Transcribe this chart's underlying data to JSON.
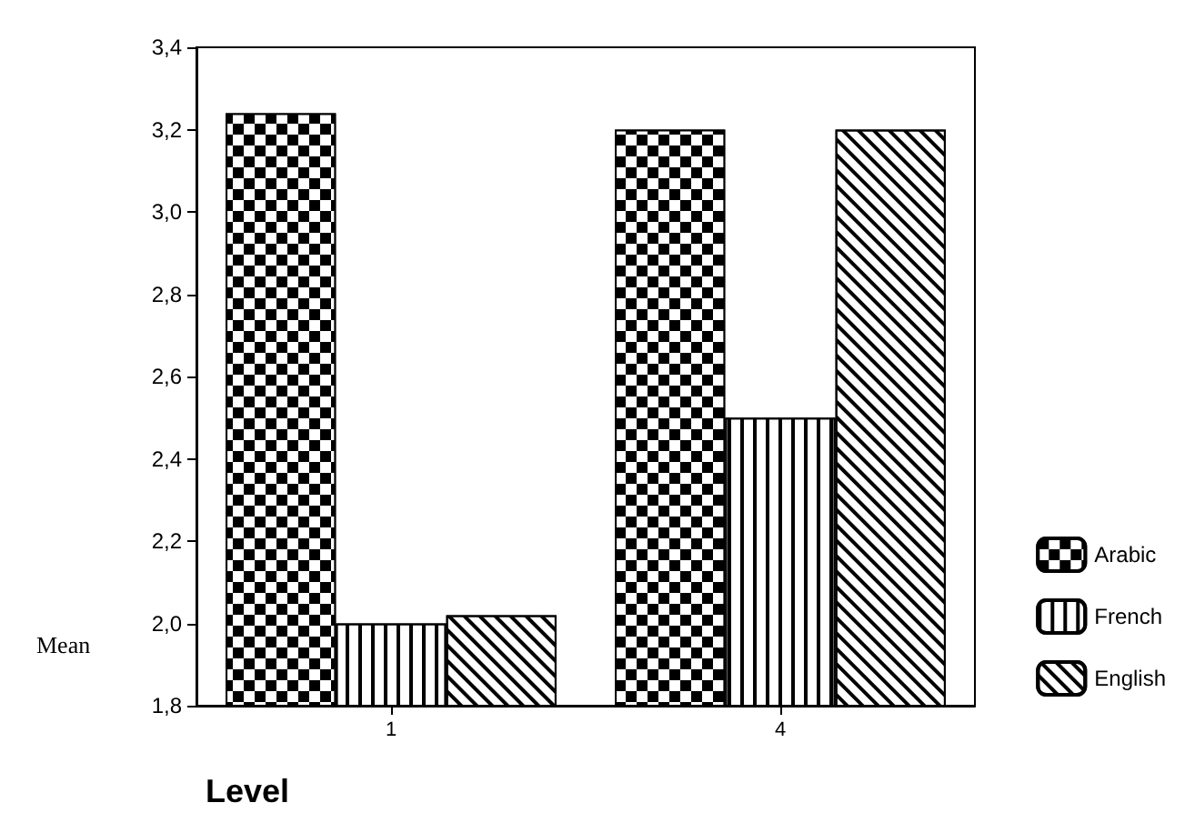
{
  "chart_data": {
    "type": "bar",
    "xlabel": "Level",
    "ylabel": "Mean",
    "categories": [
      "1",
      "4"
    ],
    "series": [
      {
        "name": "Arabic",
        "color": "#000000",
        "values": [
          3.24,
          3.2
        ]
      },
      {
        "name": "French",
        "color": "#ffffff",
        "values": [
          2.0,
          2.5
        ]
      },
      {
        "name": "English",
        "color": "#ffffff",
        "values": [
          2.02,
          3.2
        ]
      }
    ],
    "ylim": [
      1.8,
      3.4
    ],
    "yticks": [
      {
        "value": 1.8,
        "label": "1,8"
      },
      {
        "value": 2.0,
        "label": "2,0"
      },
      {
        "value": 2.2,
        "label": "2,2"
      },
      {
        "value": 2.4,
        "label": "2,4"
      },
      {
        "value": 2.6,
        "label": "2,6"
      },
      {
        "value": 2.8,
        "label": "2,8"
      },
      {
        "value": 3.0,
        "label": "3,0"
      },
      {
        "value": 3.2,
        "label": "3,2"
      },
      {
        "value": 3.4,
        "label": "3,4"
      }
    ],
    "grid": false,
    "legend": "bottom right"
  }
}
